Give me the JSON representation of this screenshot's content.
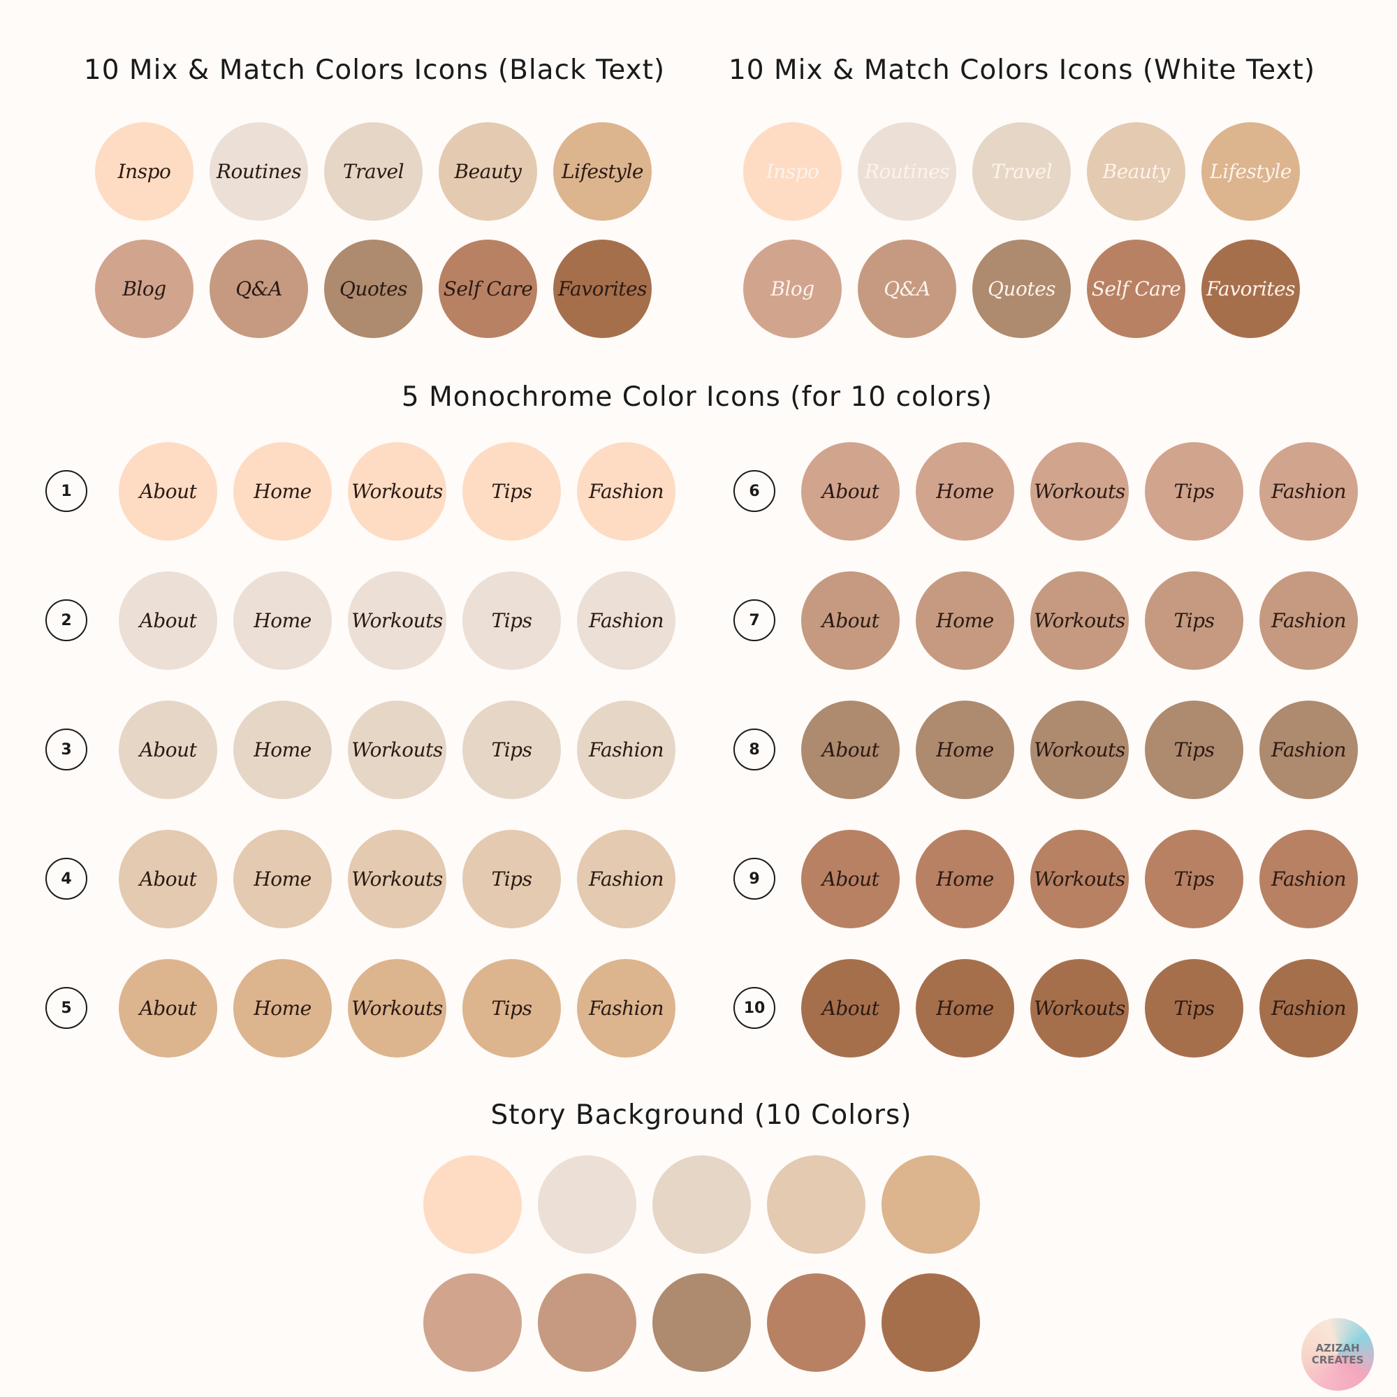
{
  "colors": [
    "#fddcc3",
    "#ecdfd5",
    "#e6d6c6",
    "#e3cab0",
    "#dcb48e",
    "#d1a48e",
    "#c59a80",
    "#ae8a6e",
    "#b88163",
    "#a66f4c"
  ],
  "mix_black": {
    "title": "10 Mix & Match Colors Icons (Black Text)",
    "labels": [
      "Inspo",
      "Routines",
      "Travel",
      "Beauty",
      "Lifestyle",
      "Blog",
      "Q&A",
      "Quotes",
      "Self Care",
      "Favorites"
    ]
  },
  "mix_white": {
    "title": "10 Mix & Match Colors Icons (White Text)",
    "labels": [
      "Inspo",
      "Routines",
      "Travel",
      "Beauty",
      "Lifestyle",
      "Blog",
      "Q&A",
      "Quotes",
      "Self Care",
      "Favorites"
    ]
  },
  "mono": {
    "title": "5 Monochrome Color Icons (for 10 colors)",
    "labels": [
      "About",
      "Home",
      "Workouts",
      "Tips",
      "Fashion"
    ],
    "numbers": [
      "1",
      "2",
      "3",
      "4",
      "5",
      "6",
      "7",
      "8",
      "9",
      "10"
    ]
  },
  "story": {
    "title": "Story Background (10 Colors)"
  },
  "logo": {
    "line1": "AZIZAH",
    "line2": "CREATES"
  }
}
